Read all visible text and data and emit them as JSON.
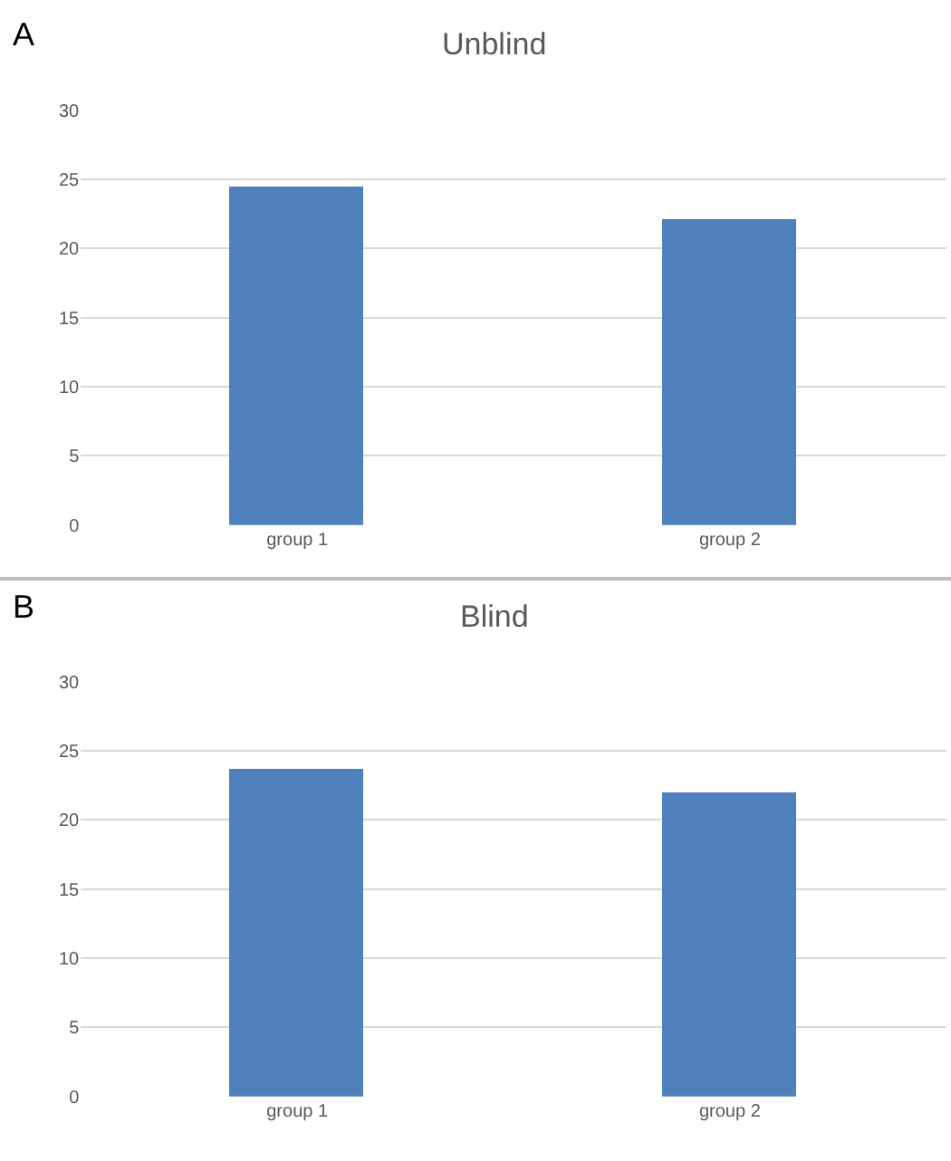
{
  "chart_data": [
    {
      "type": "bar",
      "title": "Unblind",
      "annotations": [
        "A"
      ],
      "categories": [
        "group 1",
        "group 2"
      ],
      "values": [
        24.5,
        22.2
      ],
      "color": "#4f81bd",
      "ylim": [
        0,
        30
      ],
      "yticks": [
        0,
        5,
        10,
        15,
        20,
        25,
        30
      ],
      "grid": "y"
    },
    {
      "type": "bar",
      "title": "Blind",
      "annotations": [
        "B"
      ],
      "categories": [
        "group 1",
        "group 2"
      ],
      "values": [
        23.7,
        22.0
      ],
      "color": "#4f81bd",
      "ylim": [
        0,
        30
      ],
      "yticks": [
        0,
        5,
        10,
        15,
        20,
        25,
        30
      ],
      "grid": "y"
    }
  ]
}
